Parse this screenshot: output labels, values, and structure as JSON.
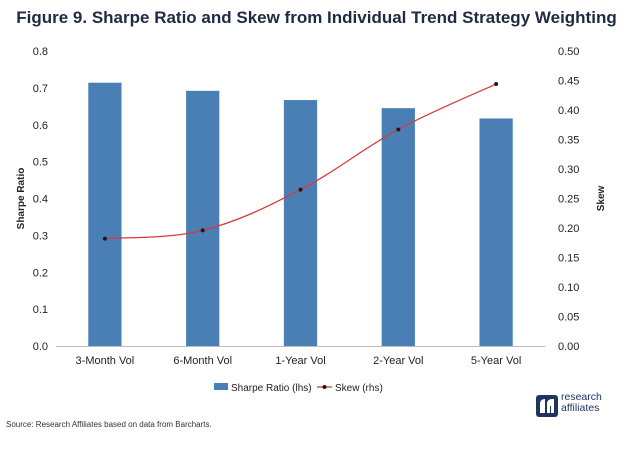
{
  "chart_data": {
    "type": "bar",
    "title": "Figure 9. Sharpe Ratio and Skew from Individual Trend Strategy Weighting",
    "categories": [
      "3-Month Vol",
      "6-Month Vol",
      "1-Year Vol",
      "2-Year Vol",
      "5-Year Vol"
    ],
    "series": [
      {
        "name": "Sharpe Ratio (lhs)",
        "type": "bar",
        "axis": "left",
        "color": "#4a7fb5",
        "values": [
          0.714,
          0.692,
          0.667,
          0.645,
          0.617
        ]
      },
      {
        "name": "Skew (rhs)",
        "type": "line",
        "axis": "right",
        "color": "#d93a3a",
        "marker_color": "#1a1a1a",
        "values": [
          0.182,
          0.196,
          0.265,
          0.367,
          0.444
        ]
      }
    ],
    "ylabel": "Sharpe Ratio",
    "y2label": "Skew",
    "ylim": [
      0,
      0.8
    ],
    "y2lim": [
      0,
      0.5
    ],
    "yticks": [
      "0.0",
      "0.1",
      "0.2",
      "0.3",
      "0.4",
      "0.5",
      "0.6",
      "0.7",
      "0.8"
    ],
    "y2ticks": [
      "0.00",
      "0.05",
      "0.10",
      "0.15",
      "0.20",
      "0.25",
      "0.30",
      "0.35",
      "0.40",
      "0.45",
      "0.50"
    ],
    "grid": false,
    "legend_position": "bottom"
  },
  "source": "Source: Research Affiliates based on data from Barcharts.",
  "brand": {
    "line1": "research",
    "line2": "affiliates",
    "logo_icon": "research-affiliates-logo-icon",
    "color": "#1f3560"
  }
}
